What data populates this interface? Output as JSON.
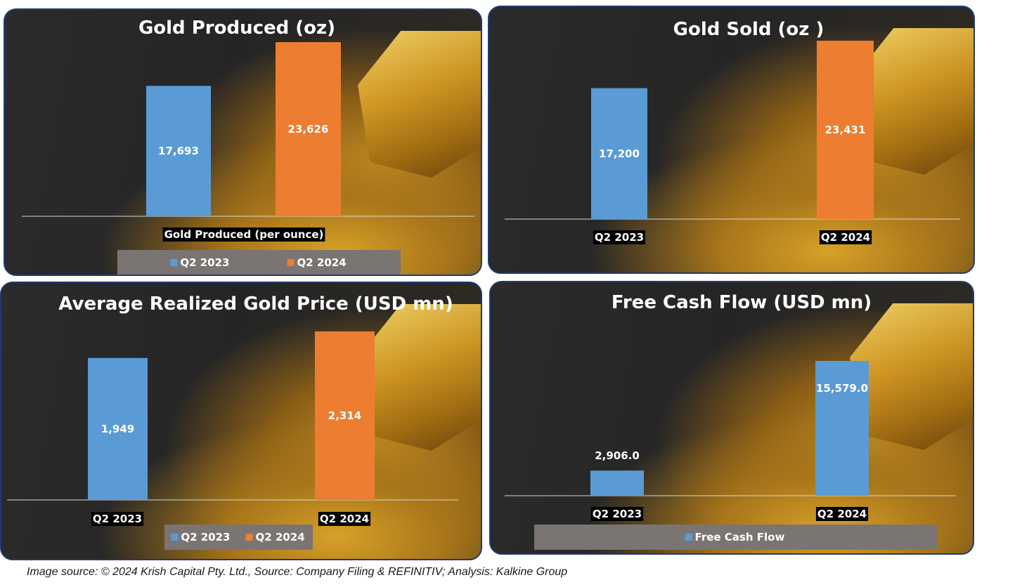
{
  "colors": {
    "blue": "#5b9bd5",
    "orange": "#ed7d31",
    "axis": "#d9d9d9"
  },
  "chart_data": [
    {
      "type": "bar",
      "title": "Gold Produced (oz)",
      "categories": [
        "Gold Produced (per ounce)"
      ],
      "series": [
        {
          "name": "Q2 2023",
          "values": [
            17693
          ],
          "labels": [
            "17,693"
          ],
          "color": "#5b9bd5"
        },
        {
          "name": "Q2 2024",
          "values": [
            23626
          ],
          "labels": [
            "23,626"
          ],
          "color": "#ed7d31"
        }
      ],
      "legend": "bottom",
      "ylim": [
        0,
        23626
      ]
    },
    {
      "type": "bar",
      "title": "Gold Sold (oz )",
      "categories": [
        "Q2 2023",
        "Q2 2024"
      ],
      "values": [
        17200,
        23431
      ],
      "labels": [
        "17,200",
        "23,431"
      ],
      "colors": [
        "#5b9bd5",
        "#ed7d31"
      ],
      "ylim": [
        0,
        23431
      ]
    },
    {
      "type": "bar",
      "title": "Average Realized Gold Price (USD mn)",
      "categories": [
        "Q2 2023",
        "Q2 2024"
      ],
      "values": [
        1949,
        2314
      ],
      "labels": [
        "1,949",
        "2,314"
      ],
      "colors": [
        "#5b9bd5",
        "#ed7d31"
      ],
      "legend_entries": [
        {
          "name": "Q2 2023",
          "color": "#5b9bd5"
        },
        {
          "name": "Q2 2024",
          "color": "#ed7d31"
        }
      ],
      "legend": "bottom",
      "ylim": [
        0,
        2314
      ]
    },
    {
      "type": "bar",
      "title": "Free Cash Flow (USD mn)",
      "categories": [
        "Q2 2023",
        "Q2 2024"
      ],
      "series": [
        {
          "name": "Free Cash Flow",
          "values": [
            2906.0,
            15579.0
          ],
          "labels": [
            "2,906.0",
            "15,579.0"
          ],
          "color": "#5b9bd5"
        }
      ],
      "legend": "bottom",
      "ylim": [
        0,
        15579.0
      ]
    }
  ],
  "footer": {
    "source": "Image source: © 2024 Krish Capital Pty. Ltd., Source: Company Filing & REFINITIV; Analysis: Kalkine Group"
  }
}
